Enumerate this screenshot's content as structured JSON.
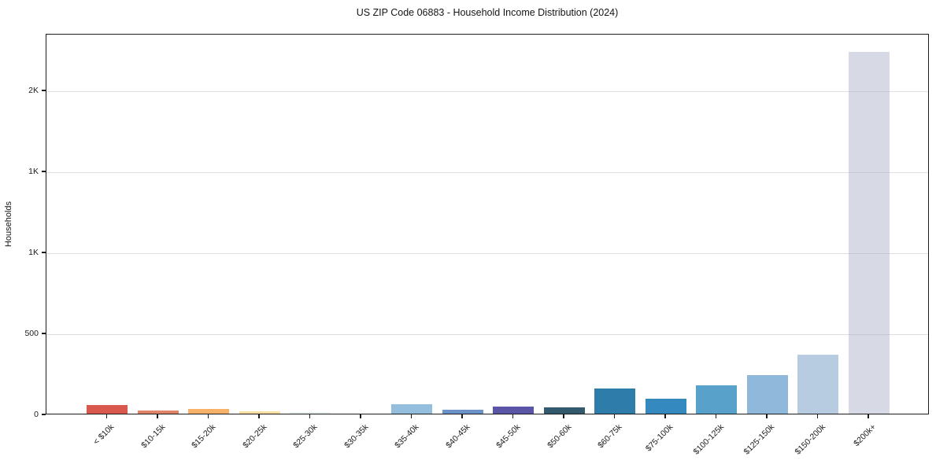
{
  "chart_data": {
    "type": "bar",
    "title": "US ZIP Code 06883 - Household Income Distribution (2024)",
    "xlabel": "",
    "ylabel": "Households",
    "categories": [
      "< $10k",
      "$10-15k",
      "$15-20k",
      "$20-25k",
      "$25-30k",
      "$30-35k",
      "$35-40k",
      "$40-45k",
      "$45-50k",
      "$50-60k",
      "$60-75k",
      "$75-100k",
      "$100-125k",
      "$125-150k",
      "$150-200k",
      "$200k+"
    ],
    "values": [
      54,
      18,
      29,
      17,
      12,
      0,
      60,
      23,
      44,
      40,
      154,
      94,
      176,
      238,
      364,
      2232
    ],
    "bar_colors": [
      "#d9584e",
      "#e08467",
      "#f7b168",
      "#fadfa2",
      "#e8f2ef",
      "#e8f2ef",
      "#93bedd",
      "#6c93c8",
      "#5a55a7",
      "#32596c",
      "#2d7caa",
      "#3489bf",
      "#58a1ca",
      "#90b8da",
      "#b7cbe1",
      "#d7d9e5"
    ],
    "ylim": [
      0,
      2350
    ],
    "yticks": [
      {
        "value": 0,
        "label": "0"
      },
      {
        "value": 500,
        "label": "500"
      },
      {
        "value": 1000,
        "label": "1K"
      },
      {
        "value": 1500,
        "label": "1K"
      },
      {
        "value": 2000,
        "label": "2K"
      }
    ],
    "grid": "horizontal",
    "legend": "none",
    "background": "#ffffff",
    "spine_color": "#1c1c1c",
    "grid_color": "#e4e4e4"
  }
}
